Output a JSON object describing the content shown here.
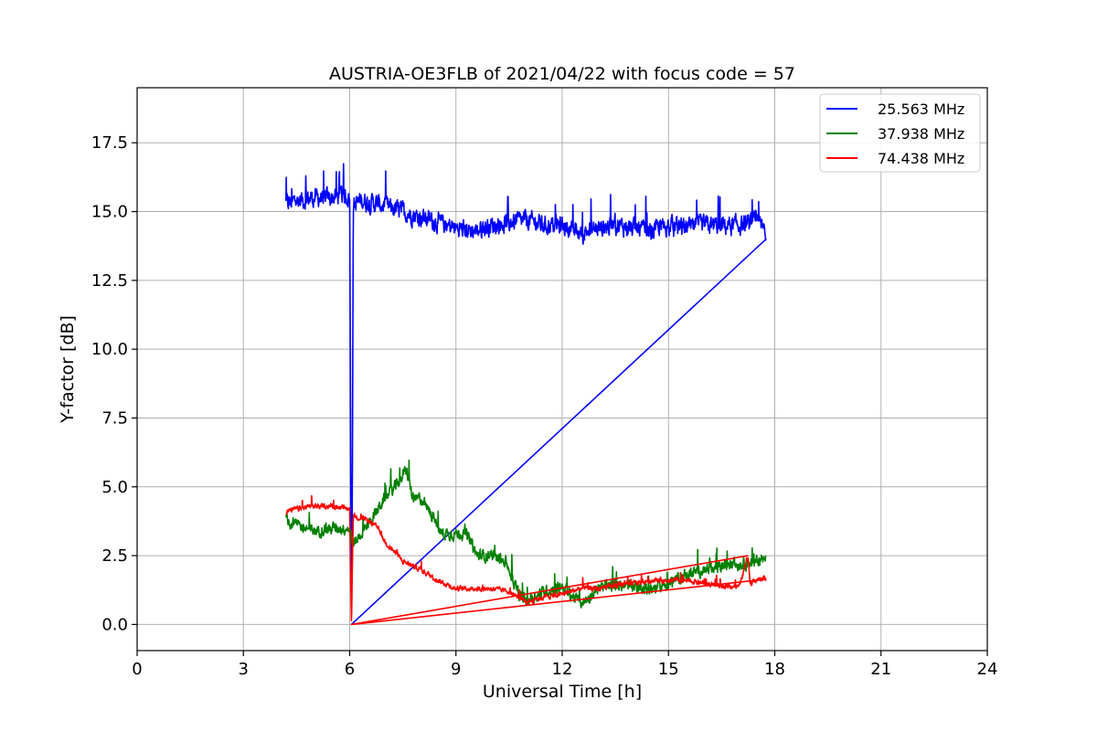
{
  "chart_data": {
    "type": "line",
    "title": "AUSTRIA-OE3FLB of 2021/04/22 with focus code = 57",
    "xlabel": "Universal Time [h]",
    "ylabel": "Y-factor [dB]",
    "xlim": [
      0,
      24
    ],
    "ylim": [
      -0.95,
      19.5
    ],
    "xticks": [
      0,
      3,
      6,
      9,
      12,
      15,
      18,
      21,
      24
    ],
    "xtick_labels": [
      "0",
      "3",
      "6",
      "9",
      "12",
      "15",
      "18",
      "21",
      "24"
    ],
    "yticks": [
      0.0,
      2.5,
      5.0,
      7.5,
      10.0,
      12.5,
      15.0,
      17.5
    ],
    "ytick_labels": [
      "0.0",
      "2.5",
      "5.0",
      "7.5",
      "10.0",
      "12.5",
      "15.0",
      "17.5"
    ],
    "grid": true,
    "legend_position": "top-right",
    "series": [
      {
        "name": "25.563 MHz",
        "color": "#0000ff",
        "x": [
          4.2,
          4.5,
          5.0,
          5.5,
          5.8,
          6.0,
          6.05,
          6.08,
          6.1,
          6.3,
          6.7,
          7.0,
          7.5,
          8.0,
          8.5,
          9.0,
          9.5,
          10.0,
          10.5,
          11.0,
          11.5,
          12.0,
          12.5,
          13.0,
          13.5,
          14.0,
          14.5,
          15.0,
          15.5,
          16.0,
          16.5,
          17.0,
          17.5,
          17.75
        ],
        "y": [
          15.3,
          15.4,
          15.5,
          15.5,
          15.6,
          15.5,
          0.0,
          6.5,
          15.2,
          15.4,
          15.3,
          15.2,
          15.0,
          14.8,
          14.6,
          14.4,
          14.3,
          14.5,
          14.6,
          14.7,
          14.5,
          14.5,
          14.2,
          14.4,
          14.5,
          14.4,
          14.3,
          14.5,
          14.4,
          14.5,
          14.5,
          14.5,
          14.6,
          14.3
        ],
        "noise": 0.55
      },
      {
        "name": "37.938 MHz",
        "color": "#008000",
        "x": [
          4.2,
          4.5,
          5.0,
          5.5,
          6.0,
          6.1,
          6.5,
          7.0,
          7.3,
          7.6,
          7.8,
          8.0,
          8.3,
          8.6,
          9.0,
          9.3,
          9.6,
          10.0,
          10.4,
          10.8,
          11.0,
          11.5,
          12.0,
          12.3,
          12.6,
          13.0,
          13.5,
          14.0,
          14.5,
          15.0,
          15.5,
          16.0,
          16.5,
          17.0,
          17.5,
          17.75
        ],
        "y": [
          3.8,
          3.6,
          3.4,
          3.5,
          3.5,
          2.9,
          3.6,
          4.6,
          5.0,
          5.6,
          4.5,
          4.6,
          4.0,
          3.3,
          3.3,
          3.3,
          2.5,
          2.5,
          2.3,
          1.0,
          0.9,
          1.2,
          1.4,
          1.0,
          0.8,
          1.3,
          1.4,
          1.4,
          1.3,
          1.5,
          1.8,
          2.0,
          2.1,
          2.2,
          2.3,
          2.5
        ],
        "noise": 0.35
      },
      {
        "name": "74.438 MHz",
        "color": "#ff0000",
        "x": [
          4.2,
          4.5,
          5.0,
          5.5,
          6.0,
          6.05,
          6.1,
          6.2,
          6.5,
          6.8,
          7.0,
          7.5,
          8.0,
          8.5,
          9.0,
          9.5,
          10.0,
          10.5,
          11.0,
          11.5,
          12.0,
          12.5,
          13.0,
          13.5,
          14.0,
          14.5,
          15.0,
          15.5,
          16.0,
          16.5,
          17.0,
          17.25,
          17.3,
          17.5,
          17.75
        ],
        "y": [
          4.1,
          4.2,
          4.3,
          4.3,
          4.2,
          0.0,
          4.0,
          3.9,
          3.8,
          3.5,
          3.0,
          2.3,
          2.0,
          1.6,
          1.3,
          1.3,
          1.3,
          1.2,
          0.8,
          1.0,
          1.1,
          1.3,
          1.3,
          1.4,
          1.5,
          1.6,
          1.6,
          1.6,
          1.5,
          1.4,
          1.4,
          2.5,
          1.5,
          1.6,
          1.7
        ],
        "noise": 0.15
      }
    ]
  }
}
